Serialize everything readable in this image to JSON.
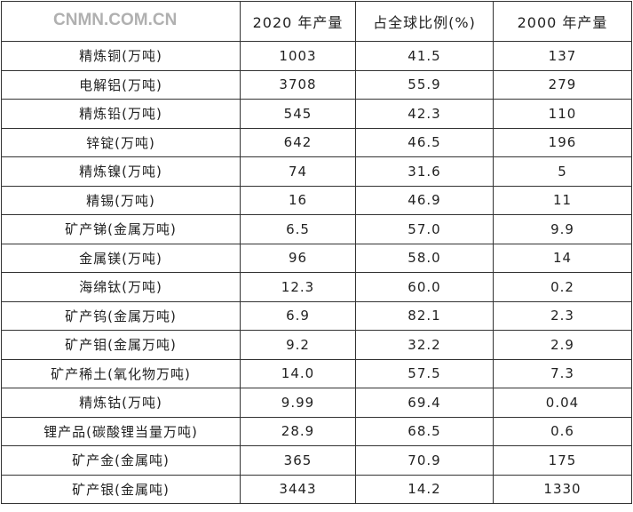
{
  "headers": [
    "",
    "2020 年产量",
    "占全球比例(%)",
    "2000 年产量"
  ],
  "rows": [
    [
      "精炼铜(万吨)",
      "1003",
      "41.5",
      "137"
    ],
    [
      "电解铝(万吨)",
      "3708",
      "55.9",
      "279"
    ],
    [
      "精炼铅(万吨)",
      "545",
      "42.3",
      "110"
    ],
    [
      "锌锭(万吨)",
      "642",
      "46.5",
      "196"
    ],
    [
      "精炼镍(万吨)",
      "74",
      "31.6",
      "5"
    ],
    [
      "精锡(万吨)",
      "16",
      "46.9",
      "11"
    ],
    [
      "矿产锑(金属万吨)",
      "6.5",
      "57.0",
      "9.9"
    ],
    [
      "金属镁(万吨)",
      "96",
      "58.0",
      "14"
    ],
    [
      "海绵钛(万吨)",
      "12.3",
      "60.0",
      "0.2"
    ],
    [
      "矿产钨(金属万吨)",
      "6.9",
      "82.1",
      "2.3"
    ],
    [
      "矿产钼(金属万吨)",
      "9.2",
      "32.2",
      "2.9"
    ],
    [
      "矿产稀土(氧化物万吨)",
      "14.0",
      "57.5",
      "7.3"
    ],
    [
      "精炼钴(万吨)",
      "9.99",
      "69.4",
      "0.04"
    ],
    [
      "锂产品(碳酸锂当量万吨)",
      "28.9",
      "68.5",
      "0.6"
    ],
    [
      "矿产金(金属吨)",
      "365",
      "70.9",
      "175"
    ],
    [
      "矿产银(金属吨)",
      "3443",
      "14.2",
      "1330"
    ]
  ],
  "watermark": "CNMN.COM.CN"
}
